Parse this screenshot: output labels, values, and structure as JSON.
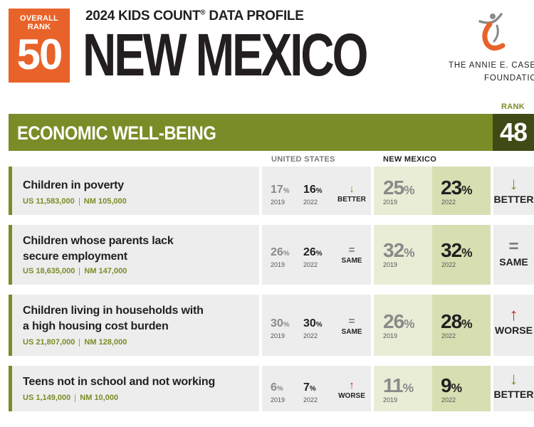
{
  "header": {
    "overall_rank_label": "OVERALL RANK",
    "overall_rank": "50",
    "subtitle_prefix": "2024 KIDS COUNT",
    "subtitle_reg": "®",
    "subtitle_suffix": " DATA PROFILE",
    "state": "NEW MEXICO",
    "logo_line1": "THE ANNIE E. CASEY",
    "logo_line2": "FOUNDATION"
  },
  "section": {
    "title": "ECONOMIC WELL-BEING",
    "rank_label": "RANK",
    "rank": "48"
  },
  "columns": {
    "us": "UNITED STATES",
    "nm": "NEW MEXICO"
  },
  "rows": [
    {
      "title_line1": "Children in poverty",
      "title_line2": "",
      "us_count": "US 11,583,000",
      "nm_count": "NM 105,000",
      "us_2019": "17",
      "us_2022": "16",
      "us_trend": "BETTER",
      "us_trend_arrow": "↓",
      "nm_2019": "25",
      "nm_2022": "23",
      "nm_trend": "BETTER",
      "nm_trend_arrow": "↓",
      "year1": "2019",
      "year2": "2022"
    },
    {
      "title_line1": "Children whose parents lack",
      "title_line2": "secure employment",
      "us_count": "US 18,635,000",
      "nm_count": "NM 147,000",
      "us_2019": "26",
      "us_2022": "26",
      "us_trend": "SAME",
      "us_trend_arrow": "=",
      "nm_2019": "32",
      "nm_2022": "32",
      "nm_trend": "SAME",
      "nm_trend_arrow": "=",
      "year1": "2019",
      "year2": "2022"
    },
    {
      "title_line1": "Children living in households with",
      "title_line2": "a high housing cost burden",
      "us_count": "US 21,807,000",
      "nm_count": "NM 128,000",
      "us_2019": "30",
      "us_2022": "30",
      "us_trend": "SAME",
      "us_trend_arrow": "=",
      "nm_2019": "26",
      "nm_2022": "28",
      "nm_trend": "WORSE",
      "nm_trend_arrow": "↑",
      "year1": "2019",
      "year2": "2022"
    },
    {
      "title_line1": "Teens not in school and not working",
      "title_line2": "",
      "us_count": "US 1,149,000",
      "nm_count": "NM 10,000",
      "us_2019": "6",
      "us_2022": "7",
      "us_trend": "WORSE",
      "us_trend_arrow": "↑",
      "nm_2019": "11",
      "nm_2022": "9",
      "nm_trend": "BETTER",
      "nm_trend_arrow": "↓",
      "year1": "2019",
      "year2": "2022"
    }
  ],
  "percent_sign": "%",
  "colors": {
    "orange": "#e8632a",
    "olive": "#7a8c27",
    "dark_olive": "#3f4a16",
    "red": "#c0272d"
  }
}
